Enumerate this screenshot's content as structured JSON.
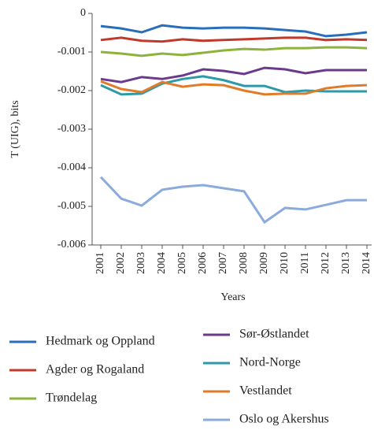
{
  "chart_data": {
    "type": "line",
    "x_label": "Years",
    "y_label": "T (UIG), bits",
    "categories": [
      "2001",
      "2002",
      "2003",
      "2004",
      "2005",
      "2006",
      "2007",
      "2008",
      "2009",
      "2010",
      "2011",
      "2012",
      "2013",
      "2014"
    ],
    "ylim": [
      -0.006,
      0
    ],
    "yticks": [
      0,
      -0.001,
      -0.002,
      -0.003,
      -0.004,
      -0.005,
      -0.006
    ],
    "series": [
      {
        "name": "Hedmark og Oppland",
        "color": "#2a6ebb",
        "values": [
          -0.00033,
          -0.00039,
          -0.00049,
          -0.00031,
          -0.00037,
          -0.00039,
          -0.00037,
          -0.00037,
          -0.00039,
          -0.00043,
          -0.00047,
          -0.00059,
          -0.00055,
          -0.00049
        ]
      },
      {
        "name": "Agder og Rogaland",
        "color": "#c0392b",
        "values": [
          -0.00069,
          -0.00063,
          -0.00071,
          -0.00073,
          -0.00067,
          -0.00071,
          -0.00069,
          -0.00067,
          -0.00065,
          -0.00063,
          -0.00063,
          -0.00069,
          -0.00067,
          -0.00069
        ]
      },
      {
        "name": "Trøndelag",
        "color": "#8db33a",
        "values": [
          -0.001,
          -0.00104,
          -0.0011,
          -0.00104,
          -0.00108,
          -0.00102,
          -0.00096,
          -0.00092,
          -0.00094,
          -0.0009,
          -0.0009,
          -0.00088,
          -0.00088,
          -0.0009
        ]
      },
      {
        "name": "Sør-Østlandet",
        "color": "#6b3a8c",
        "values": [
          -0.0017,
          -0.00178,
          -0.00165,
          -0.0017,
          -0.00161,
          -0.00145,
          -0.00149,
          -0.00157,
          -0.00141,
          -0.00145,
          -0.00155,
          -0.00147,
          -0.00147,
          -0.00147
        ]
      },
      {
        "name": "Nord-Norge",
        "color": "#2e9aa8",
        "values": [
          -0.00186,
          -0.0021,
          -0.00208,
          -0.00182,
          -0.0017,
          -0.00163,
          -0.00173,
          -0.00188,
          -0.00188,
          -0.00204,
          -0.002,
          -0.00202,
          -0.00202,
          -0.00202
        ]
      },
      {
        "name": "Vestlandet",
        "color": "#e07b2a",
        "values": [
          -0.00176,
          -0.00196,
          -0.00204,
          -0.00178,
          -0.0019,
          -0.00184,
          -0.00186,
          -0.002,
          -0.0021,
          -0.00208,
          -0.00208,
          -0.00194,
          -0.00188,
          -0.00186
        ]
      },
      {
        "name": "Oslo og Akershus",
        "color": "#8aabdc",
        "values": [
          -0.00424,
          -0.0048,
          -0.00498,
          -0.00457,
          -0.00449,
          -0.00445,
          -0.00453,
          -0.00461,
          -0.00541,
          -0.00504,
          -0.00508,
          -0.00496,
          -0.00484,
          -0.00484
        ]
      }
    ]
  }
}
